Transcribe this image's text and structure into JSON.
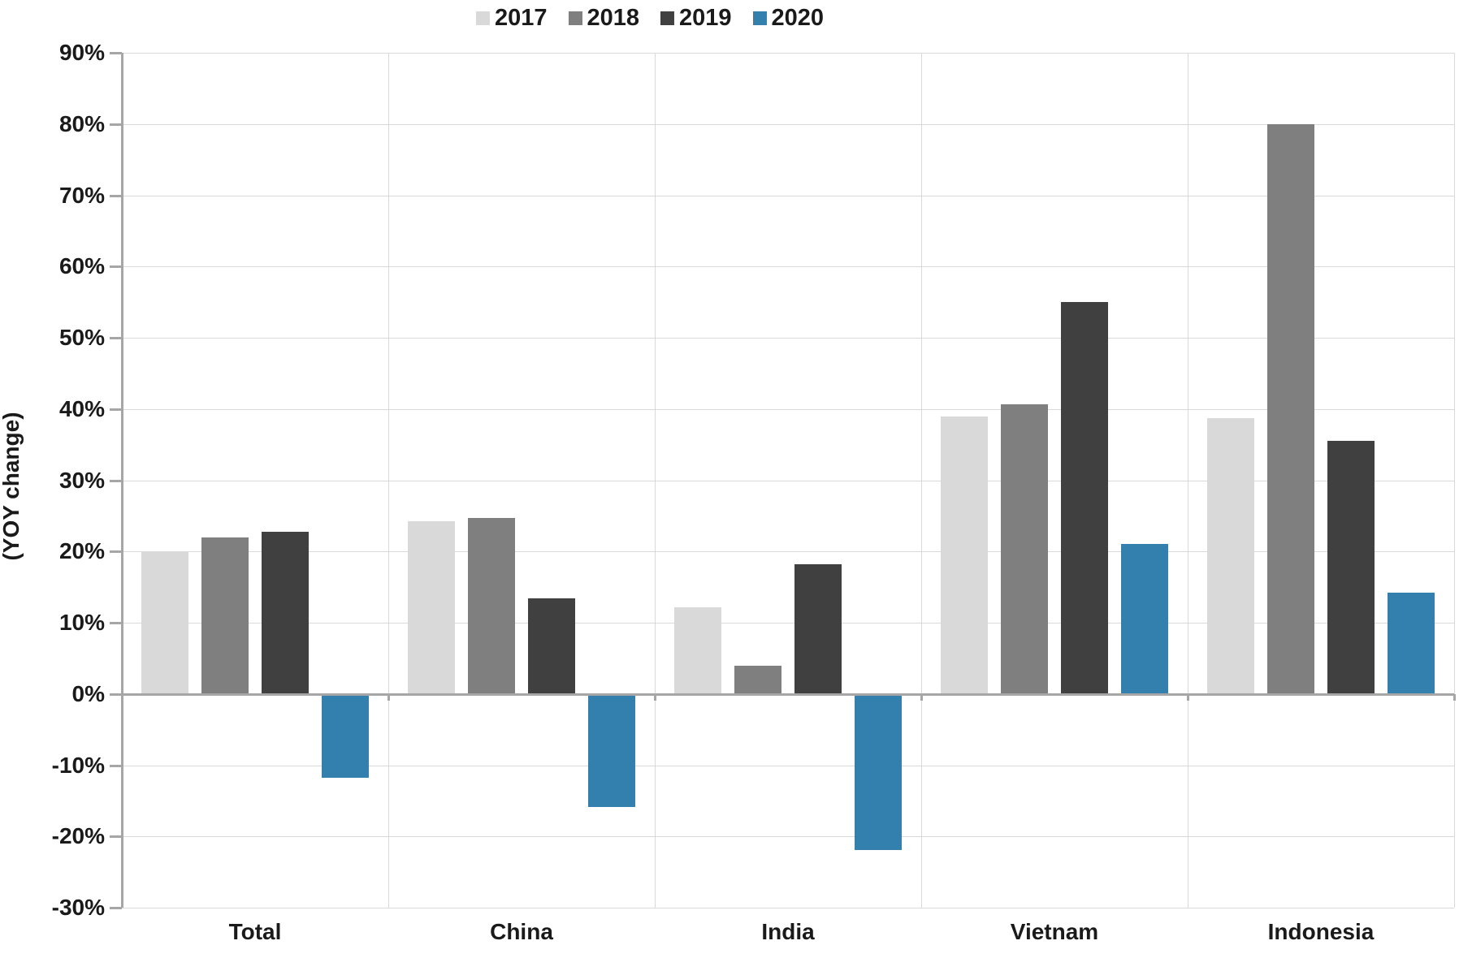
{
  "chart_data": {
    "type": "bar",
    "title": "",
    "xlabel": "",
    "ylabel": "(YOY change)",
    "categories": [
      "Total",
      "China",
      "India",
      "Vietnam",
      "Indonesia"
    ],
    "series": [
      {
        "name": "2017",
        "color": "#d9d9d9",
        "values": [
          20.0,
          24.3,
          12.2,
          39.0,
          38.7
        ]
      },
      {
        "name": "2018",
        "color": "#7f7f7f",
        "values": [
          22.0,
          24.7,
          4.0,
          40.7,
          80.0
        ]
      },
      {
        "name": "2019",
        "color": "#404040",
        "values": [
          22.8,
          13.4,
          18.2,
          55.0,
          35.5
        ]
      },
      {
        "name": "2020",
        "color": "#337fad",
        "values": [
          -11.7,
          -15.8,
          -21.8,
          21.0,
          14.2
        ]
      }
    ],
    "y_axis": {
      "min": -30,
      "max": 90,
      "step": 10,
      "ticks": [
        {
          "label": "90%",
          "value": 90
        },
        {
          "label": "80%",
          "value": 80
        },
        {
          "label": "70%",
          "value": 70
        },
        {
          "label": "60%",
          "value": 60
        },
        {
          "label": "50%",
          "value": 50
        },
        {
          "label": "40%",
          "value": 40
        },
        {
          "label": "30%",
          "value": 30
        },
        {
          "label": "20%",
          "value": 20
        },
        {
          "label": "10%",
          "value": 10
        },
        {
          "label": "0%",
          "value": 0
        },
        {
          "label": "-10%",
          "value": -10
        },
        {
          "label": "-20%",
          "value": -20
        },
        {
          "label": "-30%",
          "value": -30
        }
      ]
    },
    "grid": true,
    "legend_position": "top"
  }
}
